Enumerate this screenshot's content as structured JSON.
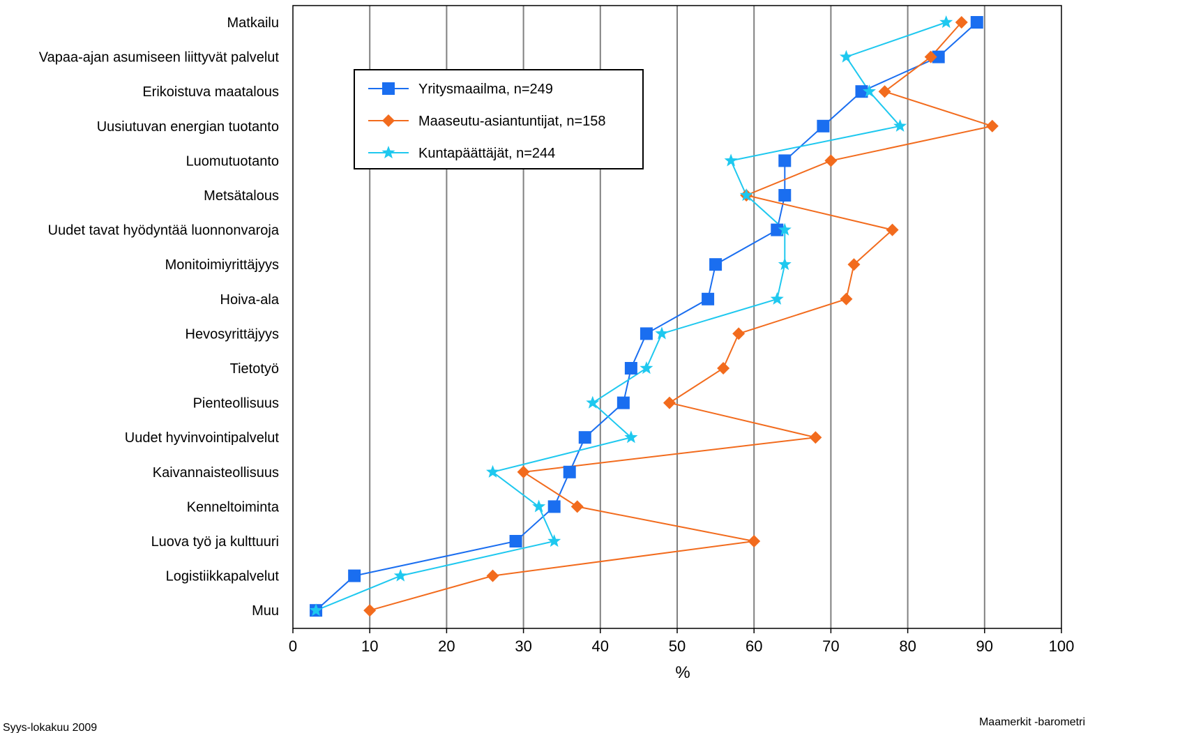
{
  "chart_data": {
    "type": "line",
    "orientation": "horizontal",
    "xlabel": "%",
    "xlim": [
      0,
      100
    ],
    "xticks": [
      "0",
      "10",
      "20",
      "30",
      "40",
      "50",
      "60",
      "70",
      "80",
      "90",
      "100"
    ],
    "grid": "vertical",
    "legend_position": "top-center",
    "categories": [
      "Matkailu",
      "Vapaa-ajan asumiseen liittyvät palvelut",
      "Erikoistuva maatalous",
      "Uusiutuvan energian tuotanto",
      "Luomutuotanto",
      "Metsätalous",
      "Uudet tavat hyödyntää luonnonvaroja",
      "Monitoimiyrittäjyys",
      "Hoiva-ala",
      "Hevosyrittäjyys",
      "Tietotyö",
      "Pienteollisuus",
      "Uudet hyvinvointipalvelut",
      "Kaivannaisteollisuus",
      "Kenneltoiminta",
      "Luova työ ja kulttuuri",
      "Logistiikkapalvelut",
      "Muu"
    ],
    "series": [
      {
        "name": "Yritysmaailma, n=249",
        "marker": "square",
        "color": "#1a6ef0",
        "values": [
          89,
          84,
          74,
          69,
          64,
          64,
          63,
          55,
          54,
          46,
          44,
          43,
          38,
          36,
          34,
          29,
          8,
          3
        ]
      },
      {
        "name": "Maaseutu-asiantuntijat, n=158",
        "marker": "diamond",
        "color": "#f26b1d",
        "values": [
          87,
          83,
          77,
          91,
          70,
          59,
          78,
          73,
          72,
          58,
          56,
          49,
          68,
          30,
          37,
          60,
          26,
          10
        ]
      },
      {
        "name": "Kuntapäättäjät, n=244",
        "marker": "star",
        "color": "#1ec8ef",
        "values": [
          85,
          72,
          75,
          79,
          57,
          59,
          64,
          64,
          63,
          48,
          46,
          39,
          44,
          26,
          32,
          34,
          14,
          3
        ]
      }
    ]
  },
  "footer": {
    "left": "Syys-lokakuu 2009",
    "right": "Maamerkit -barometri"
  }
}
